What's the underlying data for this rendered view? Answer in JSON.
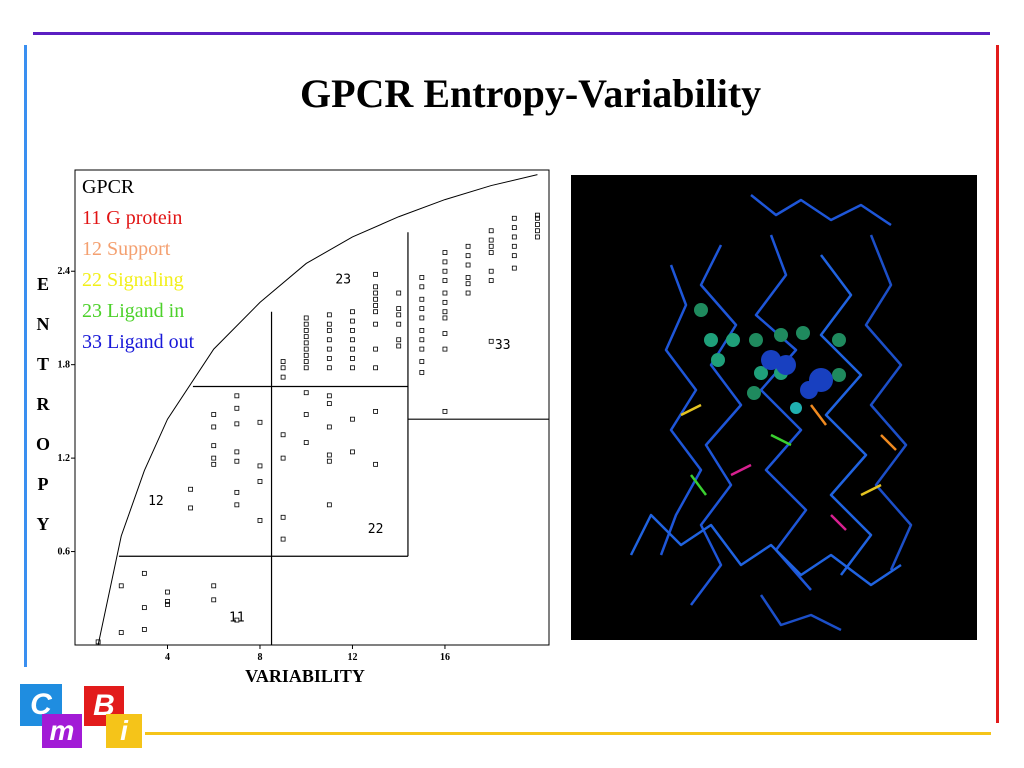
{
  "slide": {
    "title": "GPCR Entropy-Variability",
    "colors": {
      "top_line": "#5b1fc2",
      "left_line": "#3a8ff0",
      "right_line": "#e21b1b",
      "bottom_line": "#f5c419"
    }
  },
  "legend": {
    "heading": "GPCR",
    "items": [
      {
        "label": "11 G protein",
        "color": "#e11414"
      },
      {
        "label": "12 Support",
        "color": "#f4a070"
      },
      {
        "label": "22 Signaling",
        "color": "#f2ef1a"
      },
      {
        "label": "23 Ligand in",
        "color": "#4cd12a"
      },
      {
        "label": "33 Ligand out",
        "color": "#1818d8"
      }
    ]
  },
  "chart_data": {
    "type": "scatter",
    "xlabel": "VARIABILITY",
    "ylabel": "ENTROPY",
    "xlim": [
      0,
      20.5
    ],
    "ylim": [
      0,
      3.05
    ],
    "x_ticks": [
      4,
      8,
      12,
      16
    ],
    "x_tick_labels": [
      "4",
      "8",
      "12",
      "16"
    ],
    "y_ticks": [
      0.6,
      1.2,
      1.8,
      2.4
    ],
    "y_tick_labels": [
      "0.6",
      "1.2",
      "1.8",
      "2.4"
    ],
    "marker": "open-square",
    "boundary_curve": [
      [
        1,
        0
      ],
      [
        2,
        0.7
      ],
      [
        3,
        1.12
      ],
      [
        4,
        1.45
      ],
      [
        6,
        1.9
      ],
      [
        8,
        2.2
      ],
      [
        10,
        2.45
      ],
      [
        12,
        2.62
      ],
      [
        14,
        2.75
      ],
      [
        16,
        2.86
      ],
      [
        18,
        2.95
      ],
      [
        20,
        3.02
      ]
    ],
    "regions": [
      {
        "label": "11",
        "x": 7,
        "y": 0.15
      },
      {
        "label": "12",
        "x": 3.5,
        "y": 0.9
      },
      {
        "label": "22",
        "x": 13,
        "y": 0.72
      },
      {
        "label": "23",
        "x": 11.6,
        "y": 2.32
      },
      {
        "label": "33",
        "x": 18.5,
        "y": 1.9
      }
    ],
    "region_lines": [
      {
        "x1": 1.9,
        "y1": 0.57,
        "x2": 14.4,
        "y2": 0.57
      },
      {
        "x1": 8.5,
        "y1": 0,
        "x2": 8.5,
        "y2": 2.14
      },
      {
        "x1": 5.1,
        "y1": 1.66,
        "x2": 14.4,
        "y2": 1.66
      },
      {
        "x1": 14.4,
        "y1": 0.57,
        "x2": 14.4,
        "y2": 2.65
      },
      {
        "x1": 14.4,
        "y1": 1.45,
        "x2": 20.5,
        "y2": 1.45
      }
    ],
    "points": [
      [
        1,
        0.02
      ],
      [
        2,
        0.08
      ],
      [
        2,
        0.38
      ],
      [
        3,
        0.1
      ],
      [
        3,
        0.24
      ],
      [
        3,
        0.46
      ],
      [
        4,
        0.26
      ],
      [
        4,
        0.28
      ],
      [
        4,
        0.34
      ],
      [
        6,
        0.29
      ],
      [
        6,
        0.38
      ],
      [
        7,
        0.16
      ],
      [
        5,
        1.0
      ],
      [
        5,
        0.88
      ],
      [
        6,
        1.16
      ],
      [
        6,
        1.2
      ],
      [
        6,
        1.28
      ],
      [
        6,
        1.4
      ],
      [
        6,
        1.48
      ],
      [
        7,
        0.9
      ],
      [
        7,
        0.98
      ],
      [
        7,
        1.18
      ],
      [
        7,
        1.24
      ],
      [
        7,
        1.42
      ],
      [
        7,
        1.52
      ],
      [
        7,
        1.6
      ],
      [
        8,
        1.15
      ],
      [
        8,
        1.05
      ],
      [
        8,
        0.8
      ],
      [
        8,
        1.43
      ],
      [
        9,
        0.68
      ],
      [
        9,
        0.82
      ],
      [
        9,
        1.2
      ],
      [
        9,
        1.35
      ],
      [
        10,
        1.3
      ],
      [
        10,
        1.48
      ],
      [
        10,
        1.62
      ],
      [
        11,
        0.9
      ],
      [
        11,
        1.18
      ],
      [
        11,
        1.22
      ],
      [
        11,
        1.4
      ],
      [
        11,
        1.55
      ],
      [
        11,
        1.6
      ],
      [
        12,
        1.24
      ],
      [
        12,
        1.45
      ],
      [
        13,
        1.16
      ],
      [
        13,
        1.5
      ],
      [
        9,
        1.72
      ],
      [
        9,
        1.78
      ],
      [
        9,
        1.82
      ],
      [
        10,
        1.78
      ],
      [
        10,
        1.82
      ],
      [
        10,
        1.86
      ],
      [
        10,
        1.9
      ],
      [
        10,
        1.94
      ],
      [
        10,
        1.98
      ],
      [
        10,
        2.02
      ],
      [
        10,
        2.06
      ],
      [
        10,
        2.1
      ],
      [
        11,
        1.78
      ],
      [
        11,
        1.84
      ],
      [
        11,
        1.9
      ],
      [
        11,
        1.96
      ],
      [
        11,
        2.02
      ],
      [
        11,
        2.06
      ],
      [
        11,
        2.12
      ],
      [
        12,
        1.78
      ],
      [
        12,
        1.84
      ],
      [
        12,
        1.9
      ],
      [
        12,
        1.96
      ],
      [
        12,
        2.02
      ],
      [
        12,
        2.08
      ],
      [
        12,
        2.14
      ],
      [
        13,
        1.78
      ],
      [
        13,
        1.9
      ],
      [
        13,
        2.06
      ],
      [
        13,
        2.14
      ],
      [
        13,
        2.18
      ],
      [
        13,
        2.22
      ],
      [
        13,
        2.26
      ],
      [
        13,
        2.3
      ],
      [
        13,
        2.38
      ],
      [
        14,
        1.92
      ],
      [
        14,
        1.96
      ],
      [
        14,
        2.06
      ],
      [
        14,
        2.12
      ],
      [
        14,
        2.16
      ],
      [
        14,
        2.26
      ],
      [
        15,
        1.75
      ],
      [
        15,
        1.82
      ],
      [
        15,
        1.9
      ],
      [
        15,
        1.96
      ],
      [
        15,
        2.02
      ],
      [
        15,
        2.1
      ],
      [
        15,
        2.16
      ],
      [
        15,
        2.22
      ],
      [
        15,
        2.3
      ],
      [
        15,
        2.36
      ],
      [
        16,
        1.5
      ],
      [
        16,
        1.9
      ],
      [
        16,
        2.0
      ],
      [
        16,
        2.1
      ],
      [
        16,
        2.14
      ],
      [
        16,
        2.2
      ],
      [
        16,
        2.26
      ],
      [
        16,
        2.34
      ],
      [
        16,
        2.4
      ],
      [
        16,
        2.46
      ],
      [
        16,
        2.52
      ],
      [
        17,
        2.26
      ],
      [
        17,
        2.32
      ],
      [
        17,
        2.36
      ],
      [
        17,
        2.44
      ],
      [
        17,
        2.5
      ],
      [
        17,
        2.56
      ],
      [
        18,
        1.95
      ],
      [
        18,
        2.34
      ],
      [
        18,
        2.4
      ],
      [
        18,
        2.52
      ],
      [
        18,
        2.56
      ],
      [
        18,
        2.6
      ],
      [
        18,
        2.66
      ],
      [
        19,
        2.42
      ],
      [
        19,
        2.5
      ],
      [
        19,
        2.56
      ],
      [
        19,
        2.62
      ],
      [
        19,
        2.68
      ],
      [
        19,
        2.74
      ],
      [
        20,
        2.62
      ],
      [
        20,
        2.66
      ],
      [
        20,
        2.7
      ],
      [
        20,
        2.74
      ],
      [
        20,
        2.76
      ]
    ]
  },
  "protein_image": {
    "background": "#000000"
  },
  "logo": {
    "letters": [
      "C",
      "m",
      "B",
      "i"
    ],
    "colors": [
      "#1f8de0",
      "#a21bd6",
      "#e21b1b",
      "#f5c419"
    ]
  }
}
